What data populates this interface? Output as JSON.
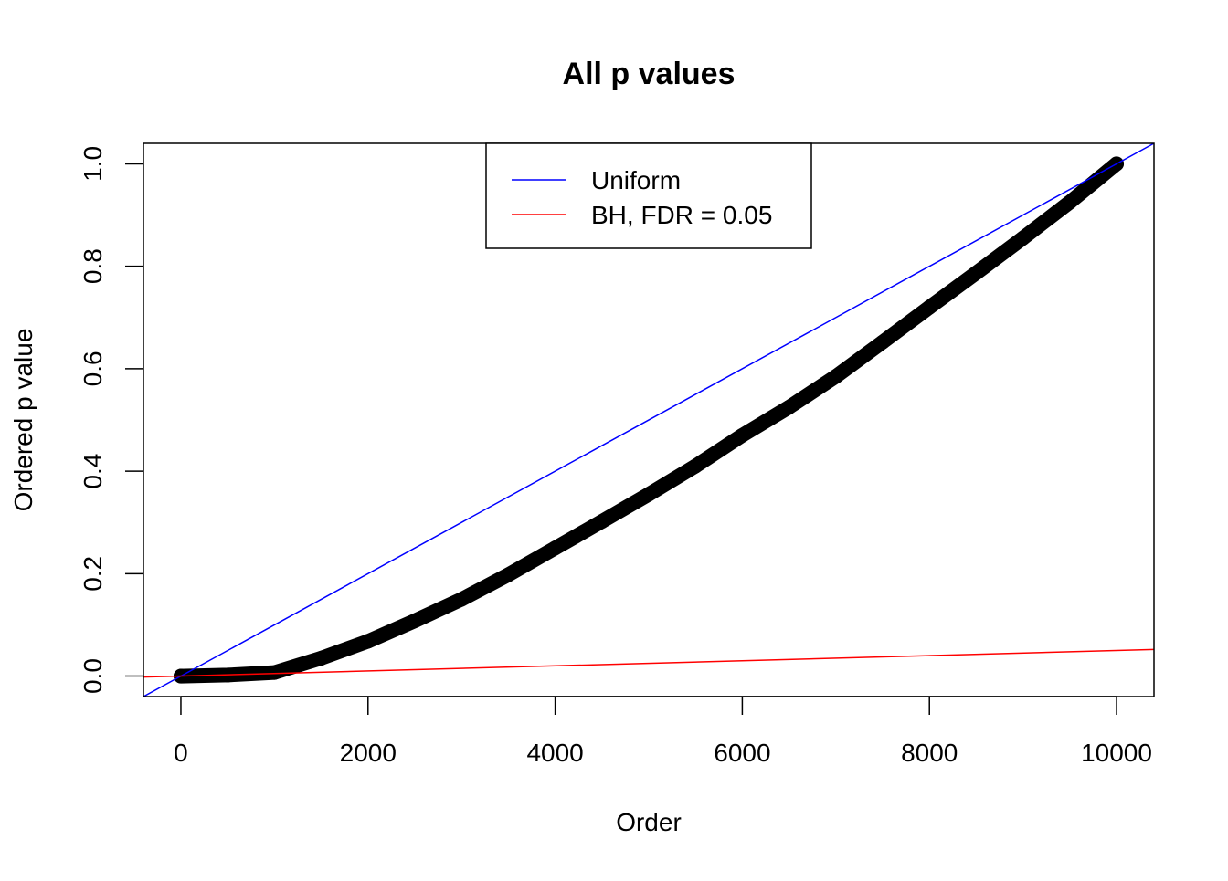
{
  "chart_data": {
    "type": "scatter",
    "title": "All p values",
    "xlabel": "Order",
    "ylabel": "Ordered p value",
    "xlim": [
      -400,
      10400
    ],
    "ylim": [
      -0.04,
      1.04
    ],
    "x_ticks": [
      0,
      2000,
      4000,
      6000,
      8000,
      10000
    ],
    "x_tick_labels": [
      "0",
      "2000",
      "4000",
      "6000",
      "8000",
      "10000"
    ],
    "y_ticks": [
      0,
      0.2,
      0.4,
      0.6,
      0.8,
      1.0
    ],
    "y_tick_labels": [
      "0.0",
      "0.2",
      "0.4",
      "0.6",
      "0.8",
      "1.0"
    ],
    "grid": false,
    "points": {
      "x": [
        0,
        500,
        1000,
        1500,
        2000,
        2500,
        3000,
        3500,
        4000,
        4500,
        5000,
        5500,
        6000,
        6500,
        7000,
        7500,
        8000,
        8500,
        9000,
        9500,
        10000
      ],
      "y": [
        0.0,
        0.002,
        0.007,
        0.035,
        0.068,
        0.108,
        0.15,
        0.198,
        0.25,
        0.302,
        0.355,
        0.41,
        0.47,
        0.525,
        0.585,
        0.652,
        0.72,
        0.787,
        0.855,
        0.925,
        1.0
      ],
      "color": "#000000"
    },
    "lines": [
      {
        "name": "Uniform",
        "intercept": 0,
        "slope": 0.0001,
        "color": "#0000ff"
      },
      {
        "name": "BH, FDR = 0.05",
        "intercept": 0,
        "slope": 5e-06,
        "color": "#ff0000"
      }
    ],
    "legend": {
      "position": "top",
      "entries": [
        "Uniform",
        "BH, FDR = 0.05"
      ]
    }
  }
}
